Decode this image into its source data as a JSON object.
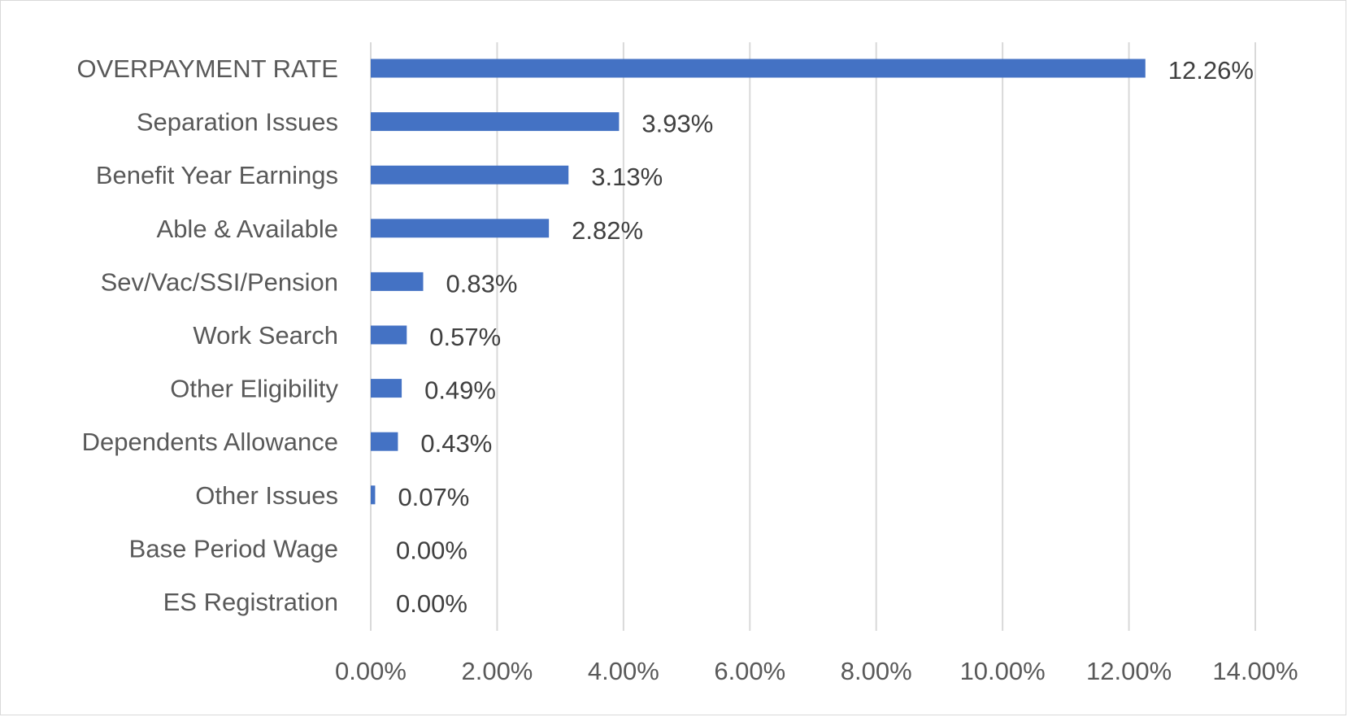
{
  "chart_data": {
    "type": "bar",
    "orientation": "horizontal",
    "title": "",
    "xlabel": "",
    "ylabel": "",
    "categories": [
      "OVERPAYMENT RATE",
      "Separation Issues",
      "Benefit Year Earnings",
      "Able & Available",
      "Sev/Vac/SSI/Pension",
      "Work Search",
      "Other Eligibility",
      "Dependents Allowance",
      "Other Issues",
      "Base Period Wage",
      "ES Registration"
    ],
    "values": [
      12.26,
      3.93,
      3.13,
      2.82,
      0.83,
      0.57,
      0.49,
      0.43,
      0.07,
      0.0,
      0.0
    ],
    "value_labels": [
      "12.26%",
      "3.93%",
      "3.13%",
      "2.82%",
      "0.83%",
      "0.57%",
      "0.49%",
      "0.43%",
      "0.07%",
      "0.00%",
      "0.00%"
    ],
    "xlim": [
      0,
      14
    ],
    "x_ticks": [
      0,
      2,
      4,
      6,
      8,
      10,
      12,
      14
    ],
    "x_tick_labels": [
      "0.00%",
      "2.00%",
      "4.00%",
      "6.00%",
      "8.00%",
      "10.00%",
      "12.00%",
      "14.00%"
    ],
    "grid": true,
    "legend": "none",
    "colors": {
      "bar": "#4472C4"
    }
  }
}
